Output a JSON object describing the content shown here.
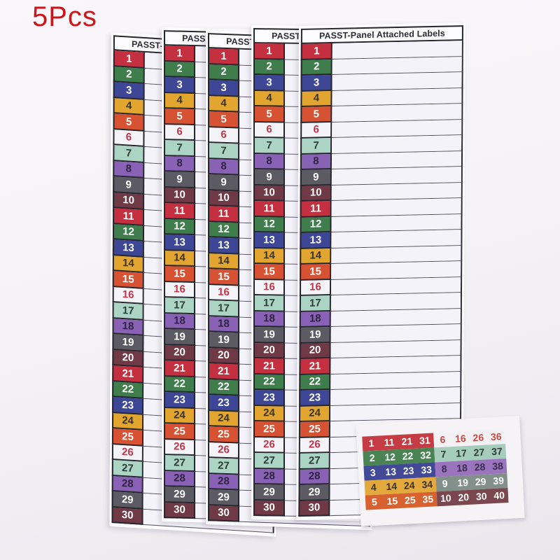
{
  "badge": {
    "text": "5Pcs",
    "color": "#cf1418"
  },
  "sheet": {
    "count": 5,
    "title": "PASST-Panel Attached Labels",
    "rows": [
      {
        "n": "1",
        "bg": "#c4303f",
        "fg": "#ffffff"
      },
      {
        "n": "2",
        "bg": "#3f7d4d",
        "fg": "#ffffff"
      },
      {
        "n": "3",
        "bg": "#3e4795",
        "fg": "#ffffff"
      },
      {
        "n": "4",
        "bg": "#e2a630",
        "fg": "#3a3328"
      },
      {
        "n": "5",
        "bg": "#d75233",
        "fg": "#ffffff"
      },
      {
        "n": "6",
        "bg": "#f4f3f8",
        "fg": "#c23446"
      },
      {
        "n": "7",
        "bg": "#abd4c4",
        "fg": "#2c3c38"
      },
      {
        "n": "8",
        "bg": "#8a62b5",
        "fg": "#2e2340"
      },
      {
        "n": "9",
        "bg": "#5c5b64",
        "fg": "#ffffff"
      },
      {
        "n": "10",
        "bg": "#6f3a45",
        "fg": "#ffffff"
      },
      {
        "n": "11",
        "bg": "#c4303f",
        "fg": "#ffffff"
      },
      {
        "n": "12",
        "bg": "#3f7d4d",
        "fg": "#ffffff"
      },
      {
        "n": "13",
        "bg": "#3e4795",
        "fg": "#ffffff"
      },
      {
        "n": "14",
        "bg": "#e2a630",
        "fg": "#3a3328"
      },
      {
        "n": "15",
        "bg": "#d75233",
        "fg": "#ffffff"
      },
      {
        "n": "16",
        "bg": "#f4f3f8",
        "fg": "#c23446"
      },
      {
        "n": "17",
        "bg": "#abd4c4",
        "fg": "#2c3c38"
      },
      {
        "n": "18",
        "bg": "#8a62b5",
        "fg": "#2e2340"
      },
      {
        "n": "19",
        "bg": "#5c5b64",
        "fg": "#ffffff"
      },
      {
        "n": "20",
        "bg": "#6f3a45",
        "fg": "#ffffff"
      },
      {
        "n": "21",
        "bg": "#c4303f",
        "fg": "#ffffff"
      },
      {
        "n": "22",
        "bg": "#3f7d4d",
        "fg": "#ffffff"
      },
      {
        "n": "23",
        "bg": "#3e4795",
        "fg": "#ffffff"
      },
      {
        "n": "24",
        "bg": "#e2a630",
        "fg": "#3a3328"
      },
      {
        "n": "25",
        "bg": "#d75233",
        "fg": "#ffffff"
      },
      {
        "n": "26",
        "bg": "#f4f3f8",
        "fg": "#c23446"
      },
      {
        "n": "27",
        "bg": "#abd4c4",
        "fg": "#2c3c38"
      },
      {
        "n": "28",
        "bg": "#8a62b5",
        "fg": "#2e2340"
      },
      {
        "n": "29",
        "bg": "#5c5b64",
        "fg": "#ffffff"
      },
      {
        "n": "30",
        "bg": "#6f3a45",
        "fg": "#ffffff"
      }
    ]
  },
  "sticker": {
    "blocks": [
      {
        "rows": [
          {
            "values": [
              "1",
              "11",
              "21",
              "31"
            ],
            "bg": "#c63c44",
            "fg": "#ffffff"
          },
          {
            "values": [
              "2",
              "12",
              "22",
              "32"
            ],
            "bg": "#4a8455",
            "fg": "#ffffff"
          },
          {
            "values": [
              "3",
              "13",
              "23",
              "33"
            ],
            "bg": "#424a98",
            "fg": "#ffffff"
          },
          {
            "values": [
              "4",
              "14",
              "24",
              "34"
            ],
            "bg": "#e3a93c",
            "fg": "#3a3328"
          },
          {
            "values": [
              "5",
              "15",
              "25",
              "35"
            ],
            "bg": "#d8622f",
            "fg": "#ffffff"
          }
        ]
      },
      {
        "rows": [
          {
            "values": [
              "6",
              "16",
              "26",
              "36"
            ],
            "bg": "#f3f1f4",
            "fg": "#c64a42"
          },
          {
            "values": [
              "7",
              "17",
              "27",
              "37"
            ],
            "bg": "#a5ccbc",
            "fg": "#2f3d3a"
          },
          {
            "values": [
              "8",
              "18",
              "28",
              "38"
            ],
            "bg": "#9a74bd",
            "fg": "#3a2c50"
          },
          {
            "values": [
              "9",
              "19",
              "29",
              "39"
            ],
            "bg": "#828f8a",
            "fg": "#ffffff"
          },
          {
            "values": [
              "10",
              "20",
              "30",
              "40"
            ],
            "bg": "#7a474e",
            "fg": "#ffffff"
          }
        ]
      }
    ]
  }
}
